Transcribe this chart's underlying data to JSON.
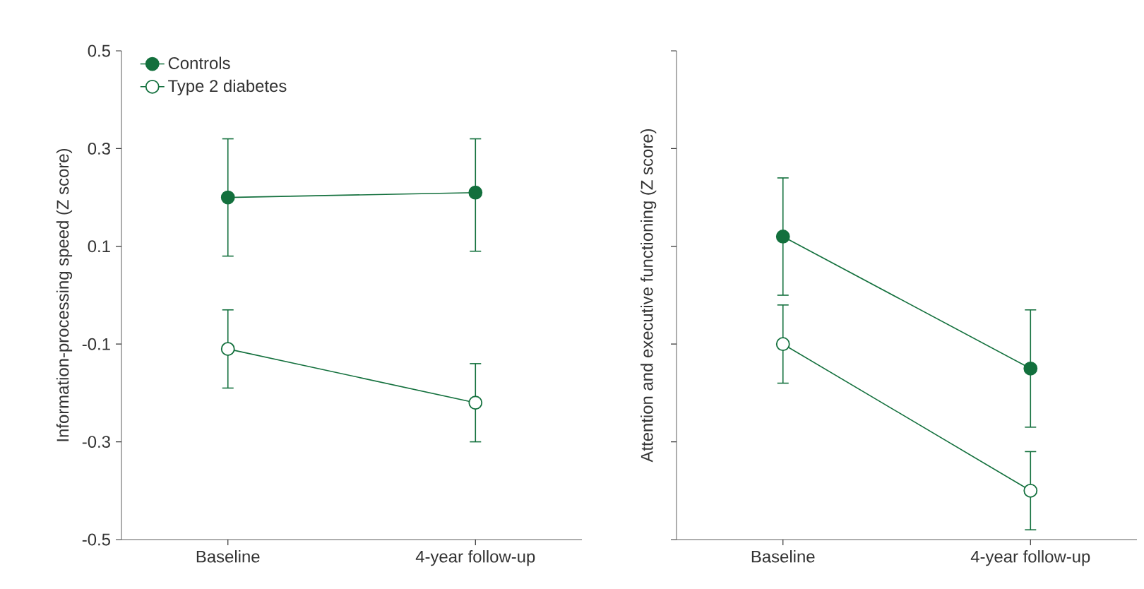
{
  "chart_data": [
    {
      "type": "line",
      "ylabel": "Information-processing speed (Z score)",
      "categories": [
        "Baseline",
        "4-year follow-up"
      ],
      "series": [
        {
          "name": "Controls",
          "color": "#13703d",
          "values": [
            0.2,
            0.21
          ],
          "errors": [
            [
              0.08,
              0.32
            ],
            [
              0.09,
              0.32
            ]
          ]
        },
        {
          "name": "Type 2 diabetes",
          "color": "#13703d",
          "values": [
            -0.11,
            -0.22
          ],
          "errors": [
            [
              -0.19,
              -0.03
            ],
            [
              -0.3,
              -0.14
            ]
          ]
        }
      ],
      "ylim": [
        -0.5,
        0.5
      ],
      "yticks": [
        -0.5,
        -0.3,
        -0.1,
        0.1,
        0.3,
        0.5
      ],
      "marker": "circle",
      "legend": "top left"
    },
    {
      "type": "line",
      "ylabel": "Attention and executive functioning (Z score)",
      "categories": [
        "Baseline",
        "4-year follow-up"
      ],
      "series": [
        {
          "color": "#13703d",
          "values": [
            0.12,
            -0.15
          ],
          "errors": [
            [
              0.0,
              0.24
            ],
            [
              -0.27,
              -0.03
            ]
          ]
        },
        {
          "color": "#13703d",
          "values": [
            -0.1,
            -0.4
          ],
          "errors": [
            [
              -0.18,
              -0.02
            ],
            [
              -0.48,
              -0.32
            ]
          ]
        }
      ],
      "ylim": [
        -0.5,
        0.5
      ],
      "yticks": [
        -0.5,
        -0.3,
        -0.1,
        0.1,
        0.3,
        0.5
      ],
      "tick_labels": "x",
      "marker": "circle"
    }
  ]
}
